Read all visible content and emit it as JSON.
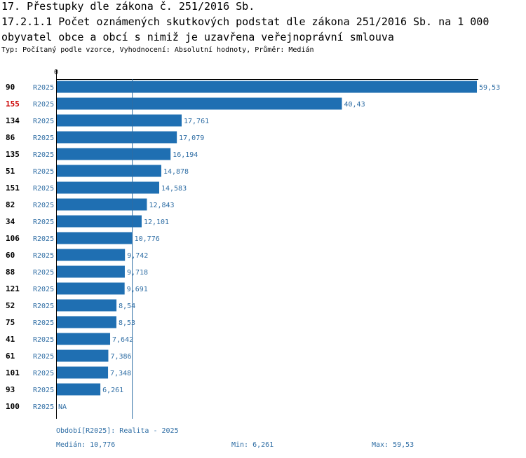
{
  "header": {
    "title": "17. Přestupky dle zákona č. 251/2016 Sb.",
    "subtitle": "17.2.1.1 Počet oznámených skutkových podstat dle zákona 251/2016 Sb. na 1 000 obyvatel obce a obcí s nimiž je uzavřena veřejnoprávní smlouva",
    "meta": "Typ: Počítaný podle vzorce, Vyhodnocení: Absolutní hodnoty, Průměr: Medián"
  },
  "chart_data": {
    "type": "bar",
    "orientation": "horizontal",
    "axis_zero_label": "0",
    "xlim": [
      0,
      59.53
    ],
    "median_value": 10.776,
    "highlight_color": "#cc0000",
    "bar_color": "#1f6fb2",
    "rows": [
      {
        "id": "90",
        "period": "R2025",
        "value": 59.53,
        "label": "59,53",
        "highlight": false
      },
      {
        "id": "155",
        "period": "R2025",
        "value": 40.43,
        "label": "40,43",
        "highlight": true
      },
      {
        "id": "134",
        "period": "R2025",
        "value": 17.761,
        "label": "17,761",
        "highlight": false
      },
      {
        "id": "86",
        "period": "R2025",
        "value": 17.079,
        "label": "17,079",
        "highlight": false
      },
      {
        "id": "135",
        "period": "R2025",
        "value": 16.194,
        "label": "16,194",
        "highlight": false
      },
      {
        "id": "51",
        "period": "R2025",
        "value": 14.878,
        "label": "14,878",
        "highlight": false
      },
      {
        "id": "151",
        "period": "R2025",
        "value": 14.583,
        "label": "14,583",
        "highlight": false
      },
      {
        "id": "82",
        "period": "R2025",
        "value": 12.843,
        "label": "12,843",
        "highlight": false
      },
      {
        "id": "34",
        "period": "R2025",
        "value": 12.101,
        "label": "12,101",
        "highlight": false
      },
      {
        "id": "106",
        "period": "R2025",
        "value": 10.776,
        "label": "10,776",
        "highlight": false
      },
      {
        "id": "60",
        "period": "R2025",
        "value": 9.742,
        "label": "9,742",
        "highlight": false
      },
      {
        "id": "88",
        "period": "R2025",
        "value": 9.718,
        "label": "9,718",
        "highlight": false
      },
      {
        "id": "121",
        "period": "R2025",
        "value": 9.691,
        "label": "9,691",
        "highlight": false
      },
      {
        "id": "52",
        "period": "R2025",
        "value": 8.54,
        "label": "8,54",
        "highlight": false
      },
      {
        "id": "75",
        "period": "R2025",
        "value": 8.53,
        "label": "8,53",
        "highlight": false
      },
      {
        "id": "41",
        "period": "R2025",
        "value": 7.642,
        "label": "7,642",
        "highlight": false
      },
      {
        "id": "61",
        "period": "R2025",
        "value": 7.386,
        "label": "7,386",
        "highlight": false
      },
      {
        "id": "101",
        "period": "R2025",
        "value": 7.348,
        "label": "7,348",
        "highlight": false
      },
      {
        "id": "93",
        "period": "R2025",
        "value": 6.261,
        "label": "6,261",
        "highlight": false
      },
      {
        "id": "100",
        "period": "R2025",
        "value": null,
        "label": "NA",
        "highlight": false
      }
    ]
  },
  "footer": {
    "period_legend": "Období[R2025]: Realita - 2025",
    "median": "Medián: 10,776",
    "min": "Min: 6,261",
    "max": "Max: 59,53"
  }
}
